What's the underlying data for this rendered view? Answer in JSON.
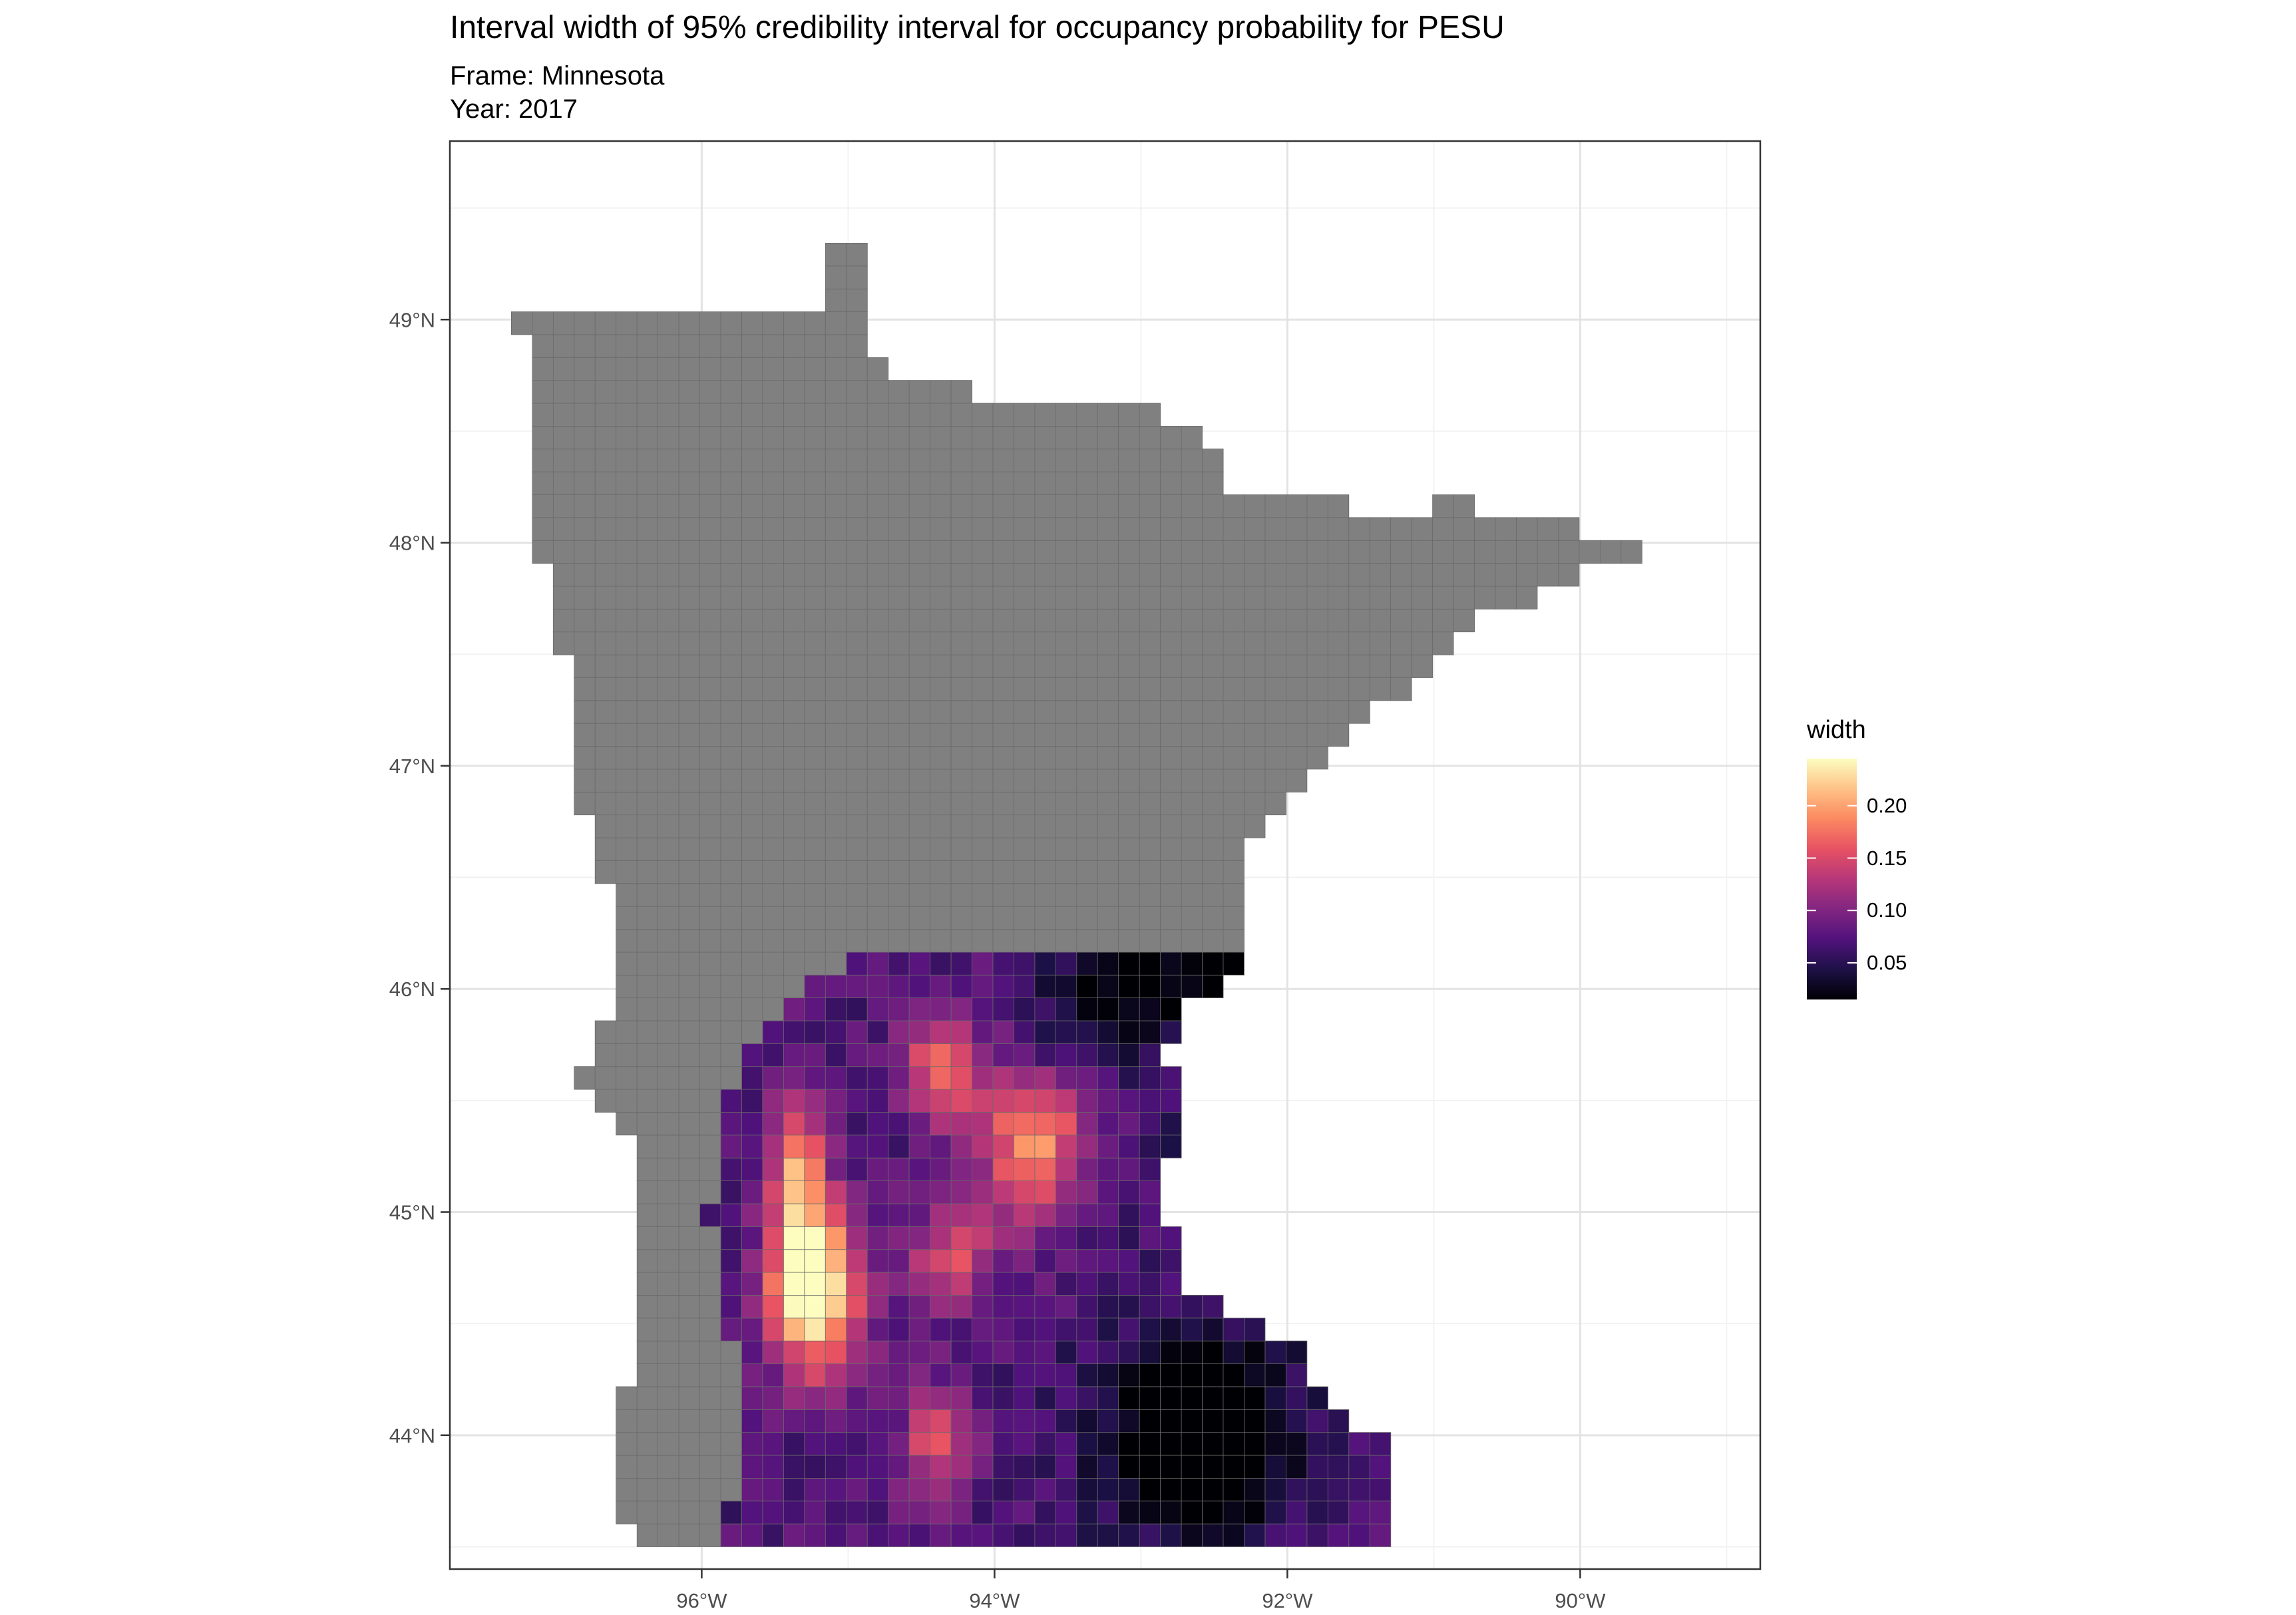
{
  "title": "Interval width of 95% credibility interval for occupancy probability for PESU",
  "subtitle": {
    "frame": "Frame: Minnesota",
    "year": "Year: 2017"
  },
  "chart_data": {
    "type": "heatmap",
    "x_axis": {
      "ticks": [
        -96,
        -94,
        -92,
        -90
      ],
      "tick_labels": [
        "96°W",
        "94°W",
        "92°W",
        "90°W"
      ],
      "range": [
        -97.72,
        -88.77
      ]
    },
    "y_axis": {
      "ticks": [
        44,
        45,
        46,
        47,
        48,
        49
      ],
      "tick_labels": [
        "44°N",
        "45°N",
        "46°N",
        "47°N",
        "48°N",
        "49°N"
      ],
      "range": [
        43.4,
        49.8
      ]
    },
    "grid": true,
    "no_data_color": "#808080",
    "legend": {
      "title": "width",
      "position": "right",
      "range": [
        0.015,
        0.245
      ],
      "ticks": [
        0.05,
        0.1,
        0.15,
        0.2
      ],
      "tick_labels": [
        "0.05",
        "0.10",
        "0.15",
        "0.20"
      ],
      "palette": "magma",
      "palette_stops": [
        "#000004",
        "#1d1147",
        "#51127c",
        "#822681",
        "#b73779",
        "#e75263",
        "#fc8961",
        "#fec287",
        "#fcfdbf"
      ]
    }
  }
}
